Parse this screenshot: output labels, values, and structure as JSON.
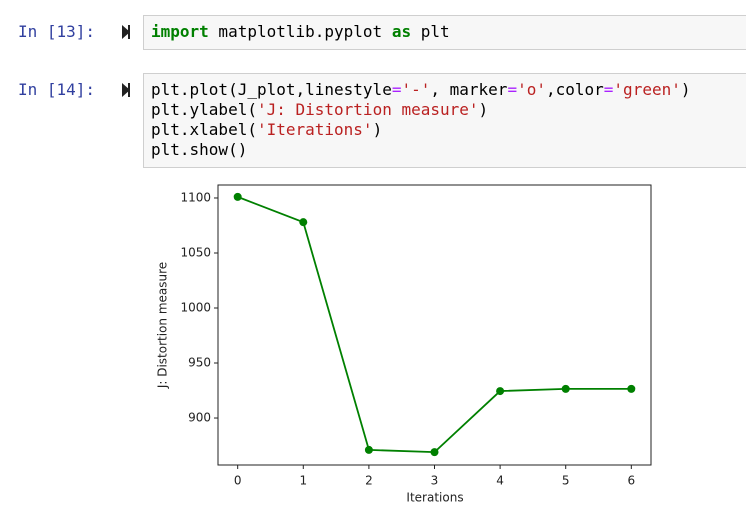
{
  "cells": [
    {
      "prompt": "In [13]:",
      "lines": [
        [
          {
            "text": "import",
            "style": "kw"
          },
          {
            "text": " matplotlib.pyplot ",
            "style": "plain"
          },
          {
            "text": "as",
            "style": "kw"
          },
          {
            "text": " plt",
            "style": "plain"
          }
        ]
      ]
    },
    {
      "prompt": "In [14]:",
      "lines": [
        [
          {
            "text": "plt.plot(J_plot,linestyle",
            "style": "plain"
          },
          {
            "text": "=",
            "style": "op"
          },
          {
            "text": "'-'",
            "style": "str"
          },
          {
            "text": ", marker",
            "style": "plain"
          },
          {
            "text": "=",
            "style": "op"
          },
          {
            "text": "'o'",
            "style": "str"
          },
          {
            "text": ",color",
            "style": "plain"
          },
          {
            "text": "=",
            "style": "op"
          },
          {
            "text": "'green'",
            "style": "str"
          },
          {
            "text": ")",
            "style": "plain"
          }
        ],
        [
          {
            "text": "plt.ylabel(",
            "style": "plain"
          },
          {
            "text": "'J: Distortion measure'",
            "style": "str"
          },
          {
            "text": ")",
            "style": "plain"
          }
        ],
        [
          {
            "text": "plt.xlabel(",
            "style": "plain"
          },
          {
            "text": "'Iterations'",
            "style": "str"
          },
          {
            "text": ")",
            "style": "plain"
          }
        ],
        [
          {
            "text": "plt.show()",
            "style": "plain"
          }
        ]
      ]
    }
  ],
  "chart_data": {
    "type": "line",
    "xlabel": "Iterations",
    "ylabel": "J: Distortion measure",
    "x": [
      0,
      1,
      2,
      3,
      4,
      5,
      6
    ],
    "series": [
      {
        "values": [
          1101,
          1078,
          871,
          869,
          924.5,
          926.5,
          926.5
        ],
        "color": "#008000",
        "marker": "o"
      }
    ],
    "xlim": [
      -0.3,
      6.3
    ],
    "ylim": [
      857.3,
      1111.8
    ],
    "xticks": [
      0,
      1,
      2,
      3,
      4,
      5,
      6
    ],
    "yticks": [
      900,
      950,
      1000,
      1050,
      1100
    ]
  }
}
